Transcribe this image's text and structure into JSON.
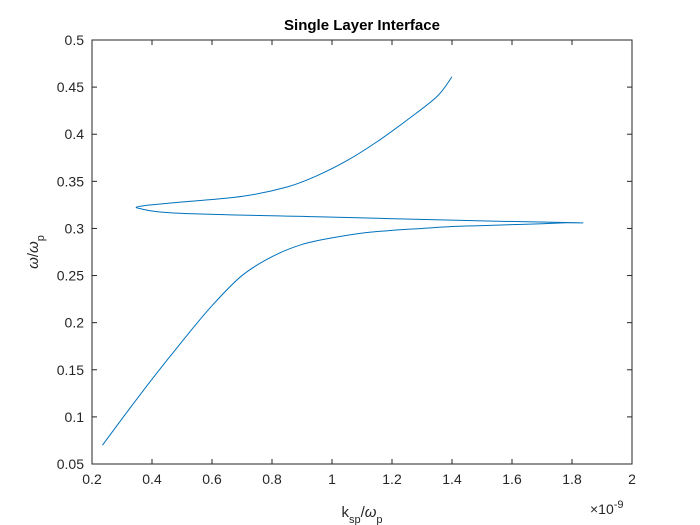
{
  "chart_data": {
    "type": "line",
    "title": "Single Layer Interface",
    "xlabel": {
      "base": "k",
      "sub": "sp",
      "slash": "/",
      "omega": "ω",
      "omega_sub": "p"
    },
    "ylabel": {
      "omega": "ω",
      "slash": "/",
      "omega2": "ω",
      "sub": "p"
    },
    "exponent": {
      "prefix": "×10",
      "power": "-9"
    },
    "xlim": [
      0.2,
      2.0
    ],
    "ylim": [
      0.05,
      0.5
    ],
    "x_scale_factor": 1e-09,
    "xticks": [
      "0.2",
      "0.4",
      "0.6",
      "0.8",
      "1",
      "1.2",
      "1.4",
      "1.6",
      "1.8",
      "2"
    ],
    "yticks": [
      "0.05",
      "0.1",
      "0.15",
      "0.2",
      "0.25",
      "0.3",
      "0.35",
      "0.4",
      "0.45",
      "0.5"
    ],
    "grid": false,
    "box": true,
    "line_color": "#0072BD",
    "axis_color": "#262626",
    "series": [
      {
        "x": [
          0.235,
          0.3,
          0.4,
          0.5,
          0.6,
          0.7,
          0.8,
          0.9,
          1.0,
          1.1,
          1.2,
          1.3,
          1.4,
          1.5,
          1.6,
          1.7,
          1.78,
          1.82,
          1.5,
          1.0,
          0.5,
          0.36,
          0.37,
          0.5,
          0.7,
          0.85,
          0.95,
          1.05,
          1.15,
          1.25,
          1.35,
          1.4
        ],
        "y": [
          0.07,
          0.098,
          0.14,
          0.18,
          0.218,
          0.25,
          0.27,
          0.283,
          0.29,
          0.295,
          0.298,
          0.3,
          0.302,
          0.303,
          0.304,
          0.305,
          0.306,
          0.306,
          0.308,
          0.312,
          0.316,
          0.321,
          0.324,
          0.328,
          0.334,
          0.344,
          0.356,
          0.372,
          0.392,
          0.415,
          0.44,
          0.461
        ]
      }
    ]
  }
}
